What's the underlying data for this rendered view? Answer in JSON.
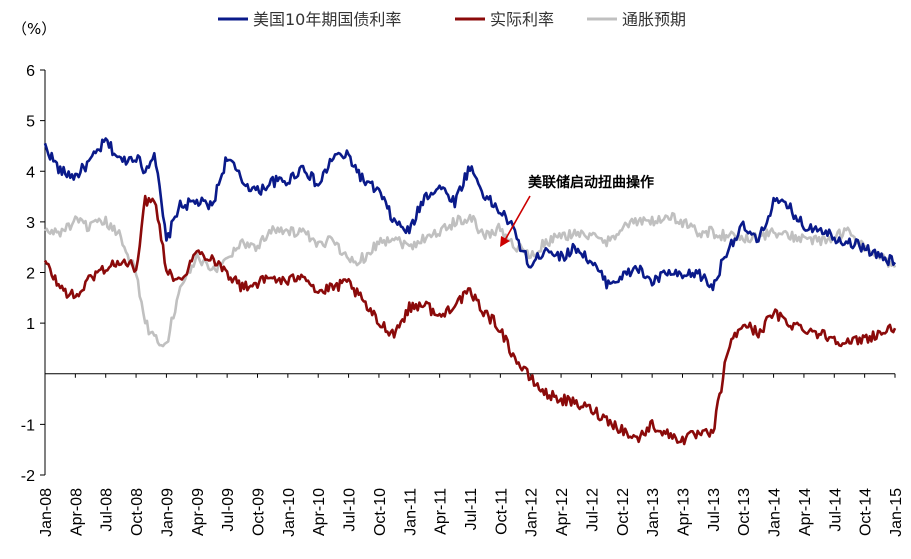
{
  "chart_data": {
    "type": "line",
    "unit_label": "（%）",
    "ylim": [
      -2,
      6
    ],
    "y_ticks": [
      "6",
      "5",
      "4",
      "3",
      "2",
      "1",
      "-1",
      "-2"
    ],
    "y_tick_values": [
      6,
      5,
      4,
      3,
      2,
      1,
      -1,
      -2
    ],
    "x_ticks": [
      "Jan-08",
      "Apr-08",
      "Jul-08",
      "Oct-08",
      "Jan-09",
      "Apr-09",
      "Jul-09",
      "Oct-09",
      "Jan-10",
      "Apr-10",
      "Jul-10",
      "Oct-10",
      "Jan-11",
      "Apr-11",
      "Jul-11",
      "Oct-11",
      "Jan-12",
      "Apr-12",
      "Jul-12",
      "Oct-12",
      "Jan-13",
      "Apr-13",
      "Jul-13",
      "Oct-13",
      "Jan-14",
      "Apr-14",
      "Jul-14",
      "Oct-14",
      "Jan-15"
    ],
    "x_index_range": [
      0,
      28
    ],
    "grid": false,
    "legend_position": "top",
    "annotation": {
      "text": "美联储启动扭曲操作",
      "x": 15.0,
      "y": 2.35
    },
    "series": [
      {
        "name": "美国10年期国债利率",
        "color": "#0a1a8a",
        "x": [
          0,
          0.5,
          1,
          1.5,
          2,
          2.5,
          3,
          3.3,
          3.6,
          4,
          4.4,
          5,
          5.5,
          6,
          6.5,
          7,
          7.5,
          8,
          8.5,
          9,
          9.5,
          10,
          10.5,
          11,
          11.5,
          12,
          12.5,
          13,
          13.5,
          14,
          14.5,
          15,
          15.3,
          15.6,
          16,
          16.5,
          17,
          17.5,
          18,
          18.5,
          19,
          19.5,
          20,
          20.5,
          21,
          21.5,
          22,
          22.5,
          23,
          23.5,
          24,
          24.5,
          25,
          25.5,
          26,
          26.5,
          27,
          27.5,
          28
        ],
        "y": [
          4.5,
          4.0,
          3.9,
          4.2,
          4.6,
          4.2,
          4.3,
          4.0,
          4.4,
          2.6,
          3.3,
          3.4,
          3.3,
          4.3,
          3.8,
          3.6,
          3.8,
          3.8,
          4.1,
          3.7,
          4.3,
          4.3,
          3.8,
          3.6,
          3.0,
          2.8,
          3.5,
          3.7,
          3.4,
          4.1,
          3.5,
          3.2,
          3.0,
          2.6,
          2.1,
          2.5,
          2.3,
          2.5,
          2.2,
          1.8,
          1.9,
          2.1,
          1.8,
          2.0,
          1.9,
          2.0,
          1.7,
          2.5,
          2.9,
          2.6,
          3.4,
          3.3,
          2.9,
          2.9,
          2.7,
          2.6,
          2.5,
          2.3,
          2.2
        ]
      },
      {
        "name": "实际利率",
        "color": "#8b0a0a",
        "x": [
          0,
          0.5,
          1,
          1.5,
          2,
          2.5,
          3,
          3.3,
          3.6,
          4,
          4.4,
          5,
          5.5,
          6,
          6.5,
          7,
          7.5,
          8,
          8.5,
          9,
          9.5,
          10,
          10.5,
          11,
          11.5,
          12,
          12.5,
          13,
          13.5,
          14,
          14.5,
          15,
          15.3,
          15.6,
          16,
          16.5,
          17,
          17.5,
          18,
          18.5,
          19,
          19.5,
          20,
          20.5,
          21,
          21.5,
          22,
          22.5,
          23,
          23.5,
          24,
          24.5,
          25,
          25.5,
          26,
          26.5,
          27,
          27.5,
          28
        ],
        "y": [
          2.2,
          1.7,
          1.5,
          1.9,
          2.1,
          2.2,
          2.1,
          3.4,
          3.5,
          2.1,
          1.8,
          2.4,
          2.3,
          2.0,
          1.7,
          1.8,
          1.9,
          1.8,
          2.0,
          1.6,
          1.7,
          1.8,
          1.4,
          1.0,
          0.8,
          1.3,
          1.4,
          1.1,
          1.4,
          1.6,
          1.2,
          0.9,
          0.5,
          0.2,
          -0.1,
          -0.4,
          -0.5,
          -0.6,
          -0.7,
          -0.9,
          -1.1,
          -1.3,
          -1.0,
          -1.2,
          -1.3,
          -1.2,
          -1.2,
          0.5,
          1.0,
          0.8,
          1.2,
          1.0,
          0.9,
          0.8,
          0.7,
          0.6,
          0.7,
          0.8,
          0.9
        ]
      },
      {
        "name": "通胀预期",
        "color": "#c0c0c0",
        "x": [
          0,
          0.5,
          1,
          1.5,
          2,
          2.5,
          3,
          3.3,
          3.6,
          4,
          4.4,
          5,
          5.5,
          6,
          6.5,
          7,
          7.5,
          8,
          8.5,
          9,
          9.5,
          10,
          10.5,
          11,
          11.5,
          12,
          12.5,
          13,
          13.5,
          14,
          14.5,
          15,
          15.3,
          15.6,
          16,
          16.5,
          17,
          17.5,
          18,
          18.5,
          19,
          19.5,
          20,
          20.5,
          21,
          21.5,
          22,
          22.5,
          23,
          23.5,
          24,
          24.5,
          25,
          25.5,
          26,
          26.5,
          27,
          27.5,
          28
        ],
        "y": [
          2.8,
          2.8,
          3.0,
          2.9,
          3.0,
          2.7,
          2.0,
          1.0,
          0.7,
          0.6,
          1.6,
          2.3,
          2.0,
          2.3,
          2.6,
          2.5,
          2.9,
          2.8,
          2.8,
          2.5,
          2.7,
          2.2,
          2.3,
          2.6,
          2.7,
          2.5,
          2.7,
          2.8,
          3.0,
          3.1,
          2.7,
          2.9,
          2.6,
          2.5,
          2.3,
          2.6,
          2.7,
          2.8,
          2.7,
          2.6,
          2.9,
          3.0,
          3.0,
          3.1,
          3.0,
          2.8,
          2.8,
          2.7,
          2.7,
          2.7,
          2.8,
          2.7,
          2.7,
          2.6,
          2.7,
          2.8,
          2.5,
          2.3,
          2.1
        ]
      }
    ]
  }
}
